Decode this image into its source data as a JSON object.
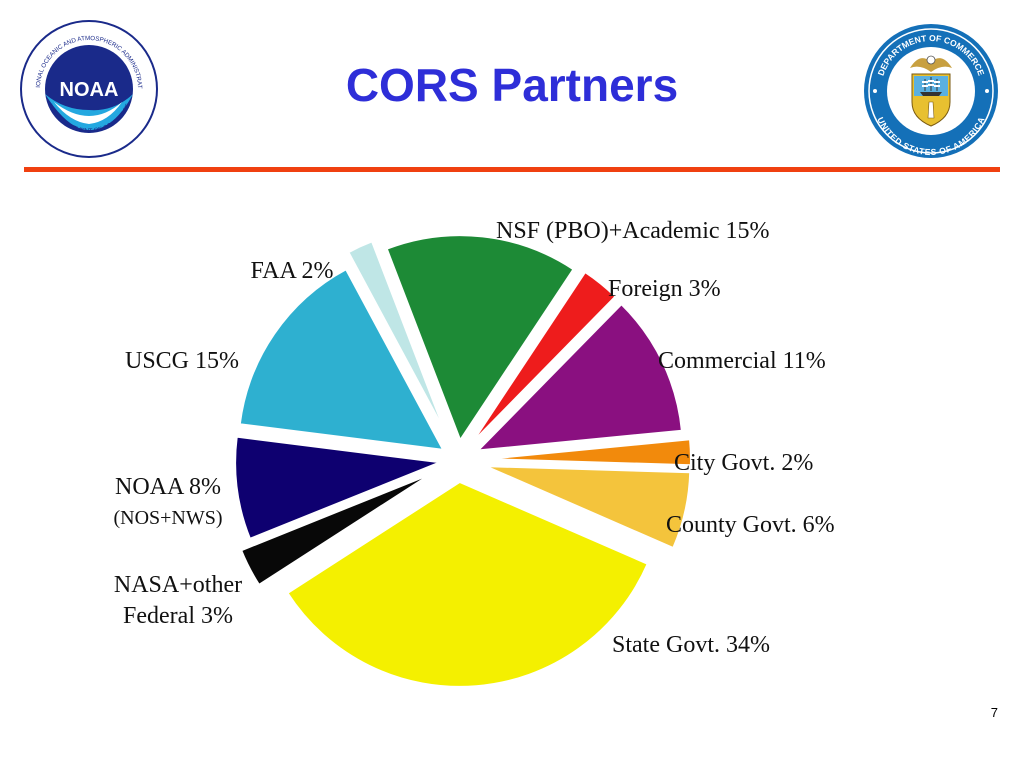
{
  "slide": {
    "title": "CORS Partners",
    "page_number": "7",
    "noaa_logo": {
      "wordmark": "NOAA",
      "ring_text": "NATIONAL OCEANIC AND ATMOSPHERIC ADMINISTRATION",
      "ring_text_bottom": "U.S. DEPARTMENT OF COMMERCE",
      "colors": {
        "blue": "#1a2a8a",
        "sky": "#24a8e0"
      }
    },
    "commerce_seal": {
      "ring_text_top": "DEPARTMENT OF COMMERCE",
      "ring_text_bottom": "UNITED STATES OF AMERICA",
      "colors": {
        "ring": "#1470b8",
        "shield": "#e8c030"
      }
    },
    "accent_color": "#f04010",
    "title_color": "#2e2ed8"
  },
  "chart_data": {
    "type": "pie",
    "title": "",
    "slices": [
      {
        "label": "NSF (PBO)+Academic 15%",
        "value": 15,
        "color": "#1d8a36"
      },
      {
        "label": "Foreign 3%",
        "value": 3,
        "color": "#ee1c1c"
      },
      {
        "label": "Commercial 11%",
        "value": 11,
        "color": "#8a1080"
      },
      {
        "label": "City Govt. 2%",
        "value": 2,
        "color": "#f28a0c"
      },
      {
        "label": "County Govt. 6%",
        "value": 6,
        "color": "#f4c43c"
      },
      {
        "label": "State Govt. 34%",
        "value": 34,
        "color": "#f4f000"
      },
      {
        "label": "NASA+other",
        "label2": "Federal 3%",
        "value": 3,
        "color": "#080808"
      },
      {
        "label": "NOAA 8%",
        "label2": "(NOS+NWS)",
        "value": 8,
        "color": "#0e0070"
      },
      {
        "label": "USCG 15%",
        "value": 15,
        "color": "#2eb0d0"
      },
      {
        "label": "FAA 2%",
        "value": 2,
        "color": "#bfe6e6"
      }
    ]
  }
}
